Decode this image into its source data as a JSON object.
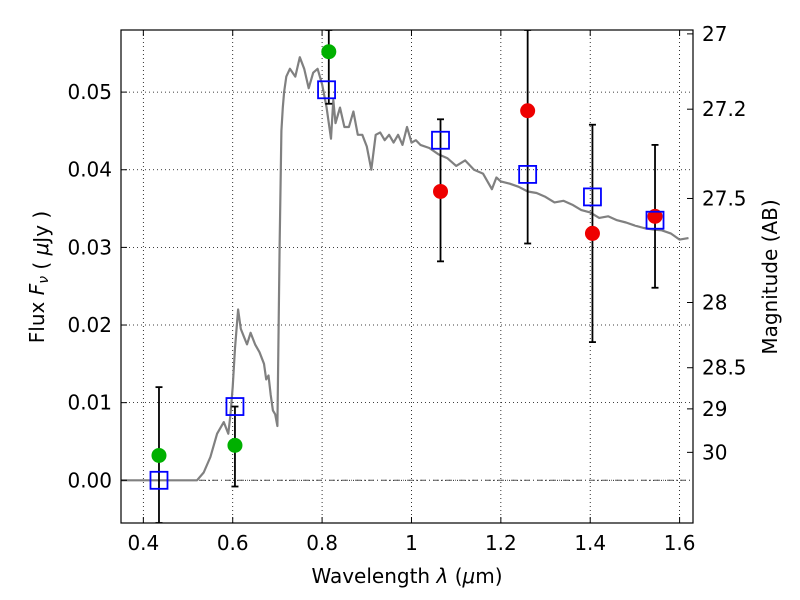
{
  "chart_data": {
    "type": "scatter",
    "xlabel": {
      "prefix": "Wavelength",
      "symbol": "λ",
      "unit_open": "(",
      "unit_mu": "μ",
      "unit_rest": "m)"
    },
    "ylabel": {
      "prefix": "Flux",
      "symbol": "F",
      "subscript": "ν",
      "unit_open": "(",
      "unit_mu": "μ",
      "unit_rest": "Jy )"
    },
    "ylabel_right": "Magnitude (AB)",
    "xlim": [
      0.35,
      1.63
    ],
    "ylim": [
      -0.0055,
      0.058
    ],
    "grid": true,
    "grid_style": "dotted",
    "x_ticks": [
      0.4,
      0.6,
      0.8,
      1.0,
      1.2,
      1.4,
      1.6
    ],
    "x_tick_labels": [
      "0.4",
      "0.6",
      "0.8",
      "1",
      "1.2",
      "1.4",
      "1.6"
    ],
    "y_ticks": [
      0.0,
      0.01,
      0.02,
      0.03,
      0.04,
      0.05
    ],
    "y_tick_labels": [
      "0.00",
      "0.01",
      "0.02",
      "0.03",
      "0.04",
      "0.05"
    ],
    "right_axis_labels": [
      {
        "label": "27",
        "flux": 0.0575
      },
      {
        "label": "27.2",
        "flux": 0.0478
      },
      {
        "label": "27.5",
        "flux": 0.0363
      },
      {
        "label": "28",
        "flux": 0.0229
      },
      {
        "label": "28.5",
        "flux": 0.0145
      },
      {
        "label": "29",
        "flux": 0.0092
      },
      {
        "label": "30",
        "flux": 0.0036
      }
    ],
    "zero_line": {
      "y": 0.0,
      "style": "dash-dot",
      "color": "#555555"
    },
    "colors": {
      "model": "#808080",
      "photometry": "#0000ff",
      "green": "#00b000",
      "red": "#ee0000",
      "errorbar": "#000000"
    },
    "series": [
      {
        "kind": "model_sed",
        "style": "line",
        "x": [
          0.35,
          0.52,
          0.535,
          0.55,
          0.565,
          0.58,
          0.59,
          0.595,
          0.6,
          0.605,
          0.612,
          0.618,
          0.625,
          0.632,
          0.64,
          0.65,
          0.66,
          0.67,
          0.675,
          0.68,
          0.685,
          0.69,
          0.695,
          0.7,
          0.705,
          0.709,
          0.712,
          0.715,
          0.72,
          0.728,
          0.74,
          0.75,
          0.76,
          0.77,
          0.78,
          0.79,
          0.8,
          0.81,
          0.82,
          0.825,
          0.83,
          0.84,
          0.85,
          0.86,
          0.87,
          0.88,
          0.89,
          0.9,
          0.91,
          0.92,
          0.93,
          0.94,
          0.95,
          0.96,
          0.97,
          0.98,
          0.99,
          1.0,
          1.01,
          1.02,
          1.04,
          1.06,
          1.08,
          1.1,
          1.12,
          1.14,
          1.16,
          1.18,
          1.19,
          1.2,
          1.22,
          1.24,
          1.26,
          1.28,
          1.3,
          1.32,
          1.34,
          1.36,
          1.38,
          1.4,
          1.42,
          1.44,
          1.46,
          1.48,
          1.5,
          1.52,
          1.54,
          1.56,
          1.58,
          1.6,
          1.62
        ],
        "y": [
          0.0,
          0.0,
          0.001,
          0.003,
          0.006,
          0.0075,
          0.006,
          0.0085,
          0.012,
          0.017,
          0.022,
          0.0195,
          0.0185,
          0.0175,
          0.019,
          0.0175,
          0.0165,
          0.015,
          0.013,
          0.0135,
          0.011,
          0.009,
          0.0085,
          0.007,
          0.03,
          0.045,
          0.048,
          0.05,
          0.052,
          0.053,
          0.052,
          0.0545,
          0.053,
          0.0505,
          0.0525,
          0.053,
          0.051,
          0.048,
          0.044,
          0.049,
          0.046,
          0.048,
          0.0455,
          0.0455,
          0.0475,
          0.0445,
          0.0445,
          0.043,
          0.04,
          0.0445,
          0.0448,
          0.0438,
          0.0445,
          0.0435,
          0.0445,
          0.0432,
          0.0455,
          0.0435,
          0.0438,
          0.0432,
          0.0428,
          0.042,
          0.0415,
          0.0405,
          0.0412,
          0.04,
          0.0395,
          0.0375,
          0.039,
          0.0385,
          0.0382,
          0.0378,
          0.0372,
          0.037,
          0.0365,
          0.0358,
          0.036,
          0.0355,
          0.0348,
          0.0345,
          0.0338,
          0.034,
          0.0335,
          0.0332,
          0.0328,
          0.0325,
          0.0323,
          0.0322,
          0.0318,
          0.031,
          0.0312
        ]
      },
      {
        "kind": "model_photometry",
        "style": "open_square",
        "x": [
          0.435,
          0.605,
          0.81,
          1.065,
          1.26,
          1.405,
          1.545
        ],
        "y": [
          0.0,
          0.0095,
          0.0503,
          0.0438,
          0.0394,
          0.0365,
          0.0335
        ]
      },
      {
        "kind": "observed",
        "style": "filled_circle",
        "color": "green",
        "x": [
          0.435,
          0.605,
          0.815
        ],
        "y": [
          0.0032,
          0.0045,
          0.0552
        ]
      },
      {
        "kind": "observed",
        "style": "filled_circle",
        "color": "red",
        "x": [
          1.065,
          1.26,
          1.405,
          1.545
        ],
        "y": [
          0.0372,
          0.0476,
          0.0318,
          0.034
        ]
      }
    ],
    "error_bars": [
      {
        "x": 0.435,
        "low": -0.0055,
        "high": 0.012
      },
      {
        "x": 0.605,
        "low": -0.0008,
        "high": 0.0095
      },
      {
        "x": 0.815,
        "low": 0.0485,
        "high": 0.058
      },
      {
        "x": 1.065,
        "low": 0.0282,
        "high": 0.0465
      },
      {
        "x": 1.26,
        "low": 0.0305,
        "high": 0.058
      },
      {
        "x": 1.405,
        "low": 0.0178,
        "high": 0.0458
      },
      {
        "x": 1.545,
        "low": 0.0248,
        "high": 0.0432
      }
    ]
  }
}
